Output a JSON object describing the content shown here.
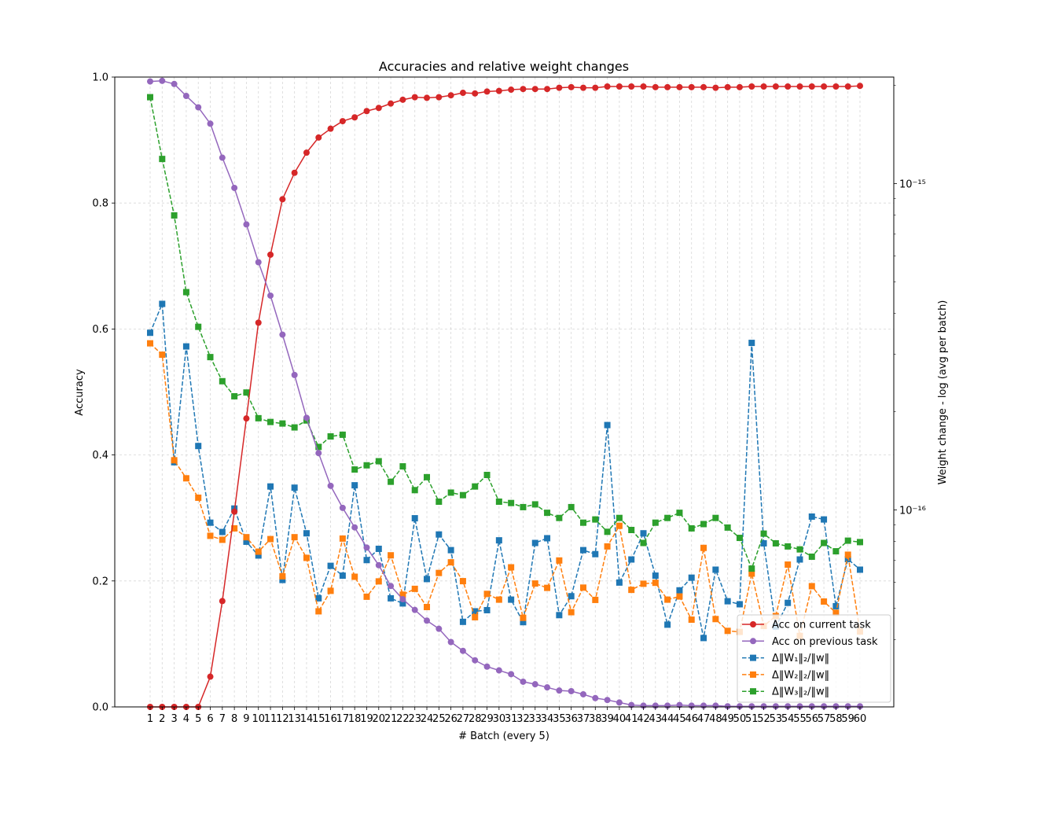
{
  "chart_data": {
    "type": "line",
    "title": "Accuracies and relative weight changes",
    "xlabel": "# Batch (every 5)",
    "ylabel": "Accuracy",
    "y2label": "Weight change - log (avg per batch)",
    "ylim": [
      0,
      1
    ],
    "y2scale": "log",
    "y2ticks": [
      "10⁻¹⁵",
      "10⁻¹⁶"
    ],
    "yticks": [
      "0.0",
      "0.2",
      "0.4",
      "0.6",
      "0.8",
      "1.0"
    ],
    "grid": true,
    "legend_position": "bottom-right",
    "x": [
      1,
      2,
      3,
      4,
      5,
      6,
      7,
      8,
      9,
      10,
      11,
      12,
      13,
      14,
      15,
      16,
      17,
      18,
      19,
      20,
      21,
      22,
      23,
      24,
      25,
      26,
      27,
      28,
      29,
      30,
      31,
      32,
      33,
      34,
      35,
      36,
      37,
      38,
      39,
      40,
      41,
      42,
      43,
      44,
      45,
      46,
      47,
      48,
      49,
      50,
      51,
      52,
      53,
      54,
      55,
      56,
      57,
      58,
      59,
      60
    ],
    "series": [
      {
        "name": "Acc on current task",
        "axis": "left",
        "color": "#d62728",
        "linestyle": "solid",
        "marker": "circle",
        "values": [
          0.0,
          0.0,
          0.0,
          0.0,
          0.0,
          0.048,
          0.168,
          0.31,
          0.458,
          0.61,
          0.718,
          0.806,
          0.848,
          0.88,
          0.904,
          0.918,
          0.93,
          0.936,
          0.946,
          0.951,
          0.958,
          0.964,
          0.968,
          0.967,
          0.968,
          0.971,
          0.975,
          0.974,
          0.977,
          0.978,
          0.98,
          0.981,
          0.981,
          0.981,
          0.983,
          0.984,
          0.983,
          0.983,
          0.985,
          0.985,
          0.985,
          0.985,
          0.984,
          0.984,
          0.984,
          0.984,
          0.984,
          0.983,
          0.984,
          0.984,
          0.985,
          0.985,
          0.985,
          0.985,
          0.985,
          0.985,
          0.985,
          0.985,
          0.985,
          0.986
        ]
      },
      {
        "name": "Acc on previous task",
        "axis": "left",
        "color": "#9467bd",
        "linestyle": "solid",
        "marker": "circle",
        "values": [
          0.993,
          0.994,
          0.989,
          0.97,
          0.952,
          0.926,
          0.872,
          0.824,
          0.766,
          0.706,
          0.653,
          0.591,
          0.527,
          0.459,
          0.403,
          0.351,
          0.316,
          0.285,
          0.253,
          0.225,
          0.192,
          0.171,
          0.154,
          0.137,
          0.124,
          0.103,
          0.089,
          0.074,
          0.064,
          0.058,
          0.052,
          0.04,
          0.036,
          0.031,
          0.026,
          0.025,
          0.02,
          0.014,
          0.011,
          0.007,
          0.003,
          0.002,
          0.002,
          0.002,
          0.003,
          0.002,
          0.002,
          0.002,
          0.001,
          0.001,
          0.001,
          0.001,
          0.001,
          0.001,
          0.001,
          0.001,
          0.001,
          0.001,
          0.001,
          0.001
        ]
      },
      {
        "name": "Δ‖W₁‖₂/‖w‖",
        "axis": "right",
        "color": "#1f77b4",
        "linestyle": "dashed",
        "marker": "square",
        "values": [
          3.49e-16,
          4.28e-16,
          1.4e-16,
          3.17e-16,
          1.57e-16,
          9.14e-17,
          8.56e-17,
          1.01e-16,
          7.99e-17,
          7.25e-17,
          1.18e-16,
          6.1e-17,
          1.17e-16,
          8.48e-17,
          5.36e-17,
          6.74e-17,
          6.29e-17,
          1.19e-16,
          7.02e-17,
          7.6e-17,
          5.36e-17,
          5.17e-17,
          9.43e-17,
          6.14e-17,
          8.41e-17,
          7.53e-17,
          4.54e-17,
          4.89e-17,
          4.93e-17,
          8.07e-17,
          5.31e-17,
          4.53e-17,
          7.92e-17,
          8.19e-17,
          4.76e-17,
          5.44e-17,
          7.53e-17,
          7.32e-17,
          1.82e-16,
          5.99e-17,
          7.05e-17,
          8.48e-17,
          6.29e-17,
          4.45e-17,
          5.67e-17,
          6.2e-17,
          4.05e-17,
          6.56e-17,
          5.25e-17,
          5.14e-17,
          3.25e-16,
          7.9e-17,
          4.39e-17,
          5.19e-17,
          7.05e-17,
          9.54e-17,
          9.35e-17,
          5.07e-17,
          7.07e-17,
          6.56e-17
        ]
      },
      {
        "name": "Δ‖W₂‖₂/‖w‖",
        "axis": "right",
        "color": "#ff7f0e",
        "linestyle": "dashed",
        "marker": "square",
        "values": [
          3.24e-16,
          2.99e-16,
          1.42e-16,
          1.25e-16,
          1.09e-16,
          8.33e-17,
          8.1e-17,
          8.78e-17,
          8.25e-17,
          7.45e-17,
          8.14e-17,
          6.26e-17,
          8.25e-17,
          7.13e-17,
          4.89e-17,
          5.65e-17,
          8.17e-17,
          6.24e-17,
          5.42e-17,
          6.04e-17,
          7.26e-17,
          5.5e-17,
          5.73e-17,
          5.04e-17,
          6.41e-17,
          6.91e-17,
          6.05e-17,
          4.69e-17,
          5.53e-17,
          5.31e-17,
          6.67e-17,
          4.67e-17,
          5.95e-17,
          5.77e-17,
          7e-17,
          4.86e-17,
          5.78e-17,
          5.3e-17,
          7.73e-17,
          8.94e-17,
          5.69e-17,
          5.94e-17,
          5.98e-17,
          5.31e-17,
          5.43e-17,
          4.61e-17,
          7.65e-17,
          4.63e-17,
          4.26e-17,
          4.23e-17,
          6.38e-17,
          4.41e-17,
          4.73e-17,
          6.8e-17,
          4.11e-17,
          5.84e-17,
          5.24e-17,
          4.84e-17,
          7.29e-17,
          4.24e-17
        ]
      },
      {
        "name": "Δ‖W₃‖₂/‖w‖",
        "axis": "right",
        "color": "#2ca02c",
        "linestyle": "dashed",
        "marker": "square",
        "values": [
          1.84e-15,
          1.19e-15,
          7.99e-16,
          4.65e-16,
          3.64e-16,
          2.94e-16,
          2.48e-16,
          2.23e-16,
          2.29e-16,
          1.91e-16,
          1.86e-16,
          1.84e-16,
          1.79e-16,
          1.88e-16,
          1.56e-16,
          1.68e-16,
          1.7e-16,
          1.33e-16,
          1.37e-16,
          1.41e-16,
          1.22e-16,
          1.36e-16,
          1.15e-16,
          1.26e-16,
          1.06e-16,
          1.13e-16,
          1.11e-16,
          1.18e-16,
          1.28e-16,
          1.06e-16,
          1.05e-16,
          1.02e-16,
          1.04e-16,
          9.8e-17,
          9.45e-17,
          1.02e-16,
          9.14e-17,
          9.35e-17,
          8.57e-17,
          9.45e-17,
          8.68e-17,
          7.92e-17,
          9.14e-17,
          9.45e-17,
          9.8e-17,
          8.78e-17,
          9.05e-17,
          9.45e-17,
          8.83e-17,
          8.21e-17,
          6.61e-17,
          8.46e-17,
          7.9e-17,
          7.73e-17,
          7.57e-17,
          7.19e-17,
          7.92e-17,
          7.47e-17,
          8.05e-17,
          7.97e-17
        ]
      }
    ]
  }
}
